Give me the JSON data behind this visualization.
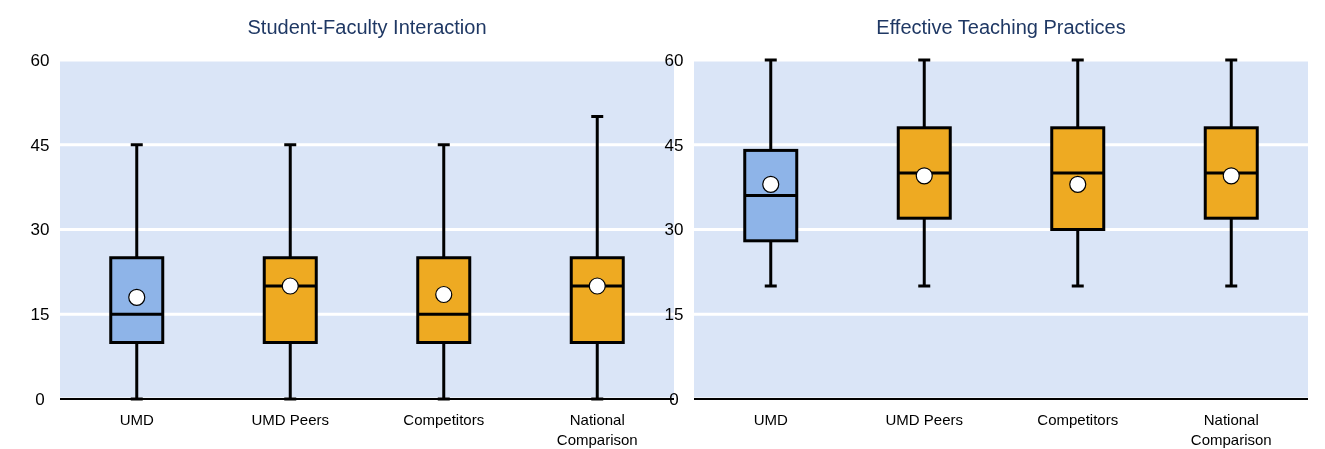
{
  "chart_data": [
    {
      "type": "box",
      "title": "Student-Faculty Interaction",
      "categories": [
        "UMD",
        "UMD Peers",
        "Competitors",
        "National Comparison"
      ],
      "colors": [
        "#8eb4e8",
        "#eeaa22",
        "#eeaa22",
        "#eeaa22"
      ],
      "ylim": [
        0,
        60
      ],
      "yticks": [
        0,
        15,
        30,
        45,
        60
      ],
      "grid": "y",
      "boxes": [
        {
          "low": 0,
          "q1": 10,
          "median": 15,
          "q3": 25,
          "high": 45,
          "mean": 18
        },
        {
          "low": 0,
          "q1": 10,
          "median": 20,
          "q3": 25,
          "high": 45,
          "mean": 20
        },
        {
          "low": 0,
          "q1": 10,
          "median": 15,
          "q3": 25,
          "high": 45,
          "mean": 18.5
        },
        {
          "low": 0,
          "q1": 10,
          "median": 20,
          "q3": 25,
          "high": 50,
          "mean": 20
        }
      ]
    },
    {
      "type": "box",
      "title": "Effective Teaching Practices",
      "categories": [
        "UMD",
        "UMD Peers",
        "Competitors",
        "National Comparison"
      ],
      "colors": [
        "#8eb4e8",
        "#eeaa22",
        "#eeaa22",
        "#eeaa22"
      ],
      "ylim": [
        0,
        60
      ],
      "yticks": [
        0,
        15,
        30,
        45,
        60
      ],
      "grid": "y",
      "boxes": [
        {
          "low": 20,
          "q1": 28,
          "median": 36,
          "q3": 44,
          "high": 60,
          "mean": 38
        },
        {
          "low": 20,
          "q1": 32,
          "median": 40,
          "q3": 48,
          "high": 60,
          "mean": 39.5
        },
        {
          "low": 20,
          "q1": 30,
          "median": 40,
          "q3": 48,
          "high": 60,
          "mean": 38
        },
        {
          "low": 20,
          "q1": 32,
          "median": 40,
          "q3": 48,
          "high": 60,
          "mean": 39.5
        }
      ]
    }
  ]
}
